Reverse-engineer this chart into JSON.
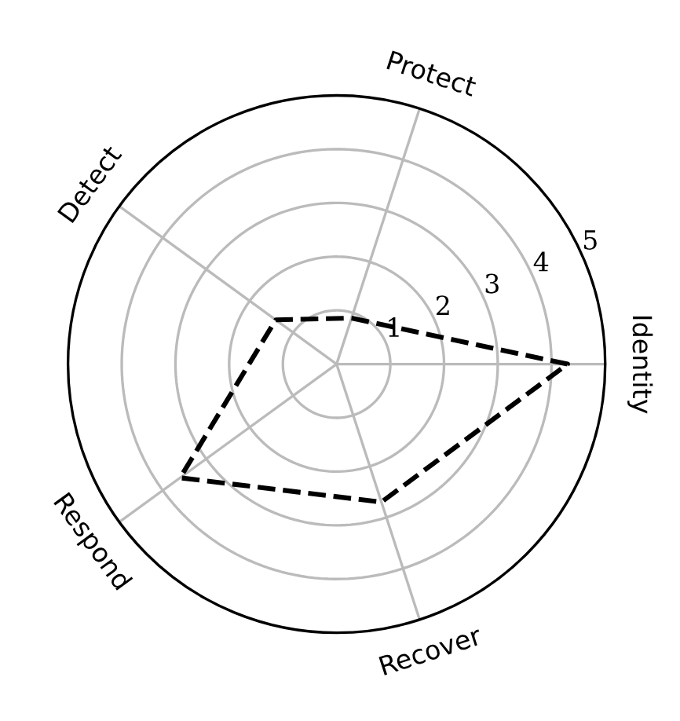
{
  "chart_data": {
    "type": "radar",
    "categories": [
      "Protect",
      "Identity",
      "Recover",
      "Respond",
      "Detect"
    ],
    "series": [
      {
        "color": "#000000",
        "values": [
          0.9,
          4.3,
          2.7,
          3.6,
          1.4
        ]
      }
    ],
    "ylim": [
      0,
      5
    ],
    "yticks": [
      1,
      2,
      3,
      4,
      5
    ],
    "grid": true,
    "line_style": "dashed",
    "marker": "none"
  }
}
